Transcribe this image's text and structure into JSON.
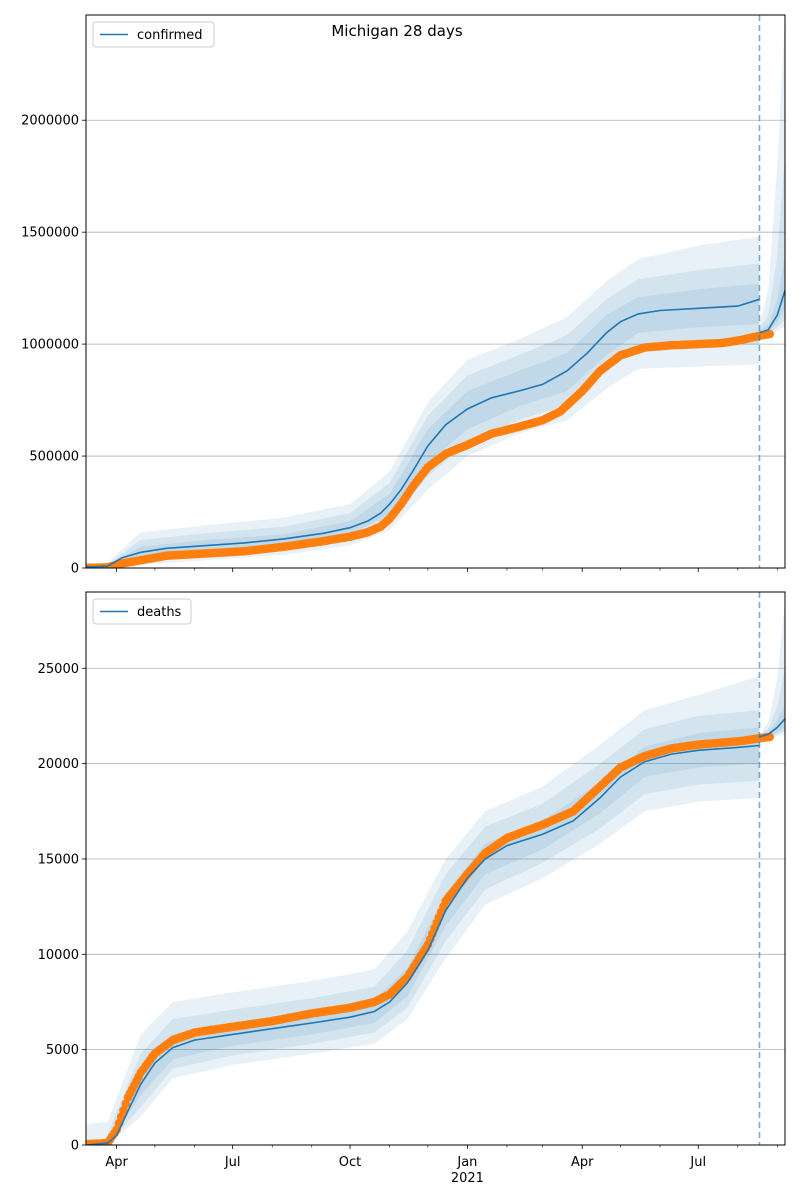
{
  "figure": {
    "title": "Michigan 28 days"
  },
  "chart_data": [
    {
      "type": "line",
      "name": "confirmed",
      "legend": {
        "label": "confirmed",
        "placement": "upper-left"
      },
      "grid": true,
      "ylim": [
        0,
        2470000
      ],
      "yticks": [
        0,
        500000,
        1000000,
        1500000,
        2000000
      ],
      "ytick_labels": [
        "0",
        "500000",
        "1000000",
        "1500000",
        "2000000"
      ],
      "xlim": [
        "2020-03-08",
        "2021-09-07"
      ],
      "forecast_start": "2021-08-18",
      "model_median": {
        "x": [
          "2020-03-08",
          "2020-03-25",
          "2020-04-05",
          "2020-04-20",
          "2020-05-10",
          "2020-06-10",
          "2020-07-10",
          "2020-08-10",
          "2020-09-10",
          "2020-10-01",
          "2020-10-15",
          "2020-10-25",
          "2020-11-01",
          "2020-11-10",
          "2020-11-20",
          "2020-12-01",
          "2020-12-15",
          "2021-01-01",
          "2021-01-20",
          "2021-02-10",
          "2021-03-01",
          "2021-03-20",
          "2021-04-05",
          "2021-04-20",
          "2021-05-01",
          "2021-05-15",
          "2021-06-01",
          "2021-07-01",
          "2021-08-01",
          "2021-08-18"
        ],
        "y": [
          5000,
          8000,
          45000,
          70000,
          88000,
          100000,
          112000,
          130000,
          155000,
          180000,
          210000,
          245000,
          285000,
          350000,
          440000,
          545000,
          640000,
          710000,
          760000,
          790000,
          820000,
          880000,
          960000,
          1050000,
          1100000,
          1135000,
          1150000,
          1160000,
          1170000,
          1200000
        ]
      },
      "model_ci_50": {
        "x": [
          "2020-03-25",
          "2020-04-20",
          "2020-06-10",
          "2020-08-10",
          "2020-10-01",
          "2020-11-01",
          "2020-12-01",
          "2021-01-01",
          "2021-02-10",
          "2021-03-20",
          "2021-04-20",
          "2021-05-15",
          "2021-07-01",
          "2021-08-18"
        ],
        "low": [
          5000,
          45000,
          75000,
          105000,
          150000,
          240000,
          470000,
          620000,
          720000,
          790000,
          950000,
          1050000,
          1075000,
          1090000
        ],
        "high": [
          12000,
          95000,
          125000,
          150000,
          210000,
          330000,
          620000,
          790000,
          880000,
          960000,
          1130000,
          1210000,
          1245000,
          1270000
        ]
      },
      "model_ci_80": {
        "x": [
          "2020-03-25",
          "2020-04-20",
          "2020-06-10",
          "2020-08-10",
          "2020-10-01",
          "2020-11-01",
          "2020-12-01",
          "2021-01-01",
          "2021-02-10",
          "2021-03-20",
          "2021-04-20",
          "2021-05-15",
          "2021-07-01",
          "2021-08-18"
        ],
        "low": [
          3000,
          30000,
          55000,
          85000,
          125000,
          205000,
          410000,
          560000,
          660000,
          730000,
          880000,
          975000,
          990000,
          1000000
        ],
        "high": [
          18000,
          125000,
          155000,
          185000,
          245000,
          380000,
          680000,
          860000,
          950000,
          1040000,
          1200000,
          1290000,
          1330000,
          1360000
        ]
      },
      "model_ci_95": {
        "x": [
          "2020-03-25",
          "2020-04-20",
          "2020-06-10",
          "2020-08-10",
          "2020-10-01",
          "2020-11-01",
          "2020-12-01",
          "2021-01-01",
          "2021-02-10",
          "2021-03-20",
          "2021-04-20",
          "2021-05-15",
          "2021-07-01",
          "2021-08-18"
        ],
        "low": [
          0,
          15000,
          35000,
          60000,
          100000,
          170000,
          350000,
          500000,
          600000,
          660000,
          800000,
          890000,
          900000,
          910000
        ],
        "high": [
          25000,
          160000,
          190000,
          225000,
          285000,
          430000,
          740000,
          930000,
          1020000,
          1120000,
          1280000,
          1380000,
          1440000,
          1480000
        ]
      },
      "observed": {
        "x": [
          "2020-03-08",
          "2020-03-25",
          "2020-04-05",
          "2020-04-20",
          "2020-05-10",
          "2020-06-10",
          "2020-07-10",
          "2020-08-10",
          "2020-09-10",
          "2020-10-01",
          "2020-10-15",
          "2020-10-25",
          "2020-11-01",
          "2020-11-10",
          "2020-11-20",
          "2020-12-01",
          "2020-12-15",
          "2021-01-01",
          "2021-01-20",
          "2021-02-10",
          "2021-03-01",
          "2021-03-15",
          "2021-04-01",
          "2021-04-15",
          "2021-05-01",
          "2021-05-20",
          "2021-06-10",
          "2021-07-01",
          "2021-07-20",
          "2021-08-05",
          "2021-08-20",
          "2021-08-26"
        ],
        "y": [
          500,
          3000,
          20000,
          35000,
          55000,
          65000,
          75000,
          95000,
          120000,
          140000,
          160000,
          185000,
          220000,
          285000,
          370000,
          450000,
          510000,
          550000,
          600000,
          630000,
          660000,
          700000,
          790000,
          880000,
          950000,
          985000,
          995000,
          1000000,
          1005000,
          1020000,
          1040000,
          1045000
        ]
      },
      "forecast_median": {
        "x": [
          "2021-08-18",
          "2021-08-25",
          "2021-09-01",
          "2021-09-07"
        ],
        "y": [
          1050000,
          1065000,
          1130000,
          1240000
        ]
      },
      "forecast_ci_50": {
        "x": [
          "2021-08-18",
          "2021-08-25",
          "2021-09-01",
          "2021-09-07"
        ],
        "low": [
          1040000,
          1050000,
          1095000,
          1160000
        ],
        "high": [
          1060000,
          1085000,
          1200000,
          1400000
        ]
      },
      "forecast_ci_80": {
        "x": [
          "2021-08-18",
          "2021-08-25",
          "2021-09-01",
          "2021-09-07"
        ],
        "low": [
          1035000,
          1045000,
          1075000,
          1110000
        ],
        "high": [
          1070000,
          1130000,
          1400000,
          1850000
        ]
      },
      "forecast_ci_95": {
        "x": [
          "2021-08-18",
          "2021-08-25",
          "2021-09-01",
          "2021-09-07"
        ],
        "low": [
          1030000,
          1040000,
          1060000,
          1080000
        ],
        "high": [
          1080000,
          1250000,
          1800000,
          2470000
        ]
      }
    },
    {
      "type": "line",
      "name": "deaths",
      "legend": {
        "label": "deaths",
        "placement": "upper-left"
      },
      "grid": true,
      "ylim": [
        0,
        29000
      ],
      "yticks": [
        0,
        5000,
        10000,
        15000,
        20000,
        25000
      ],
      "ytick_labels": [
        "0",
        "5000",
        "10000",
        "15000",
        "20000",
        "25000"
      ],
      "xlim": [
        "2020-03-08",
        "2021-09-07"
      ],
      "xticks": [
        "2020-04-01",
        "2020-07-01",
        "2020-10-01",
        "2021-01-01",
        "2021-04-01",
        "2021-07-01"
      ],
      "xtick_labels": [
        "Apr",
        "Jul",
        "Oct",
        "Jan",
        "Apr",
        "Jul"
      ],
      "xtick_sublabel": {
        "at": "2021-01-01",
        "text": "2021"
      },
      "xminor_ticks": [
        "2020-05-01",
        "2020-06-01",
        "2020-08-01",
        "2020-09-01",
        "2020-11-01",
        "2020-12-01",
        "2021-02-01",
        "2021-03-01",
        "2021-05-01",
        "2021-06-01",
        "2021-08-01",
        "2021-09-01"
      ],
      "forecast_start": "2021-08-18",
      "model_median": {
        "x": [
          "2020-03-08",
          "2020-03-25",
          "2020-04-01",
          "2020-04-10",
          "2020-04-20",
          "2020-05-01",
          "2020-05-15",
          "2020-06-01",
          "2020-07-01",
          "2020-08-01",
          "2020-09-01",
          "2020-10-01",
          "2020-10-20",
          "2020-11-01",
          "2020-11-15",
          "2020-12-01",
          "2020-12-15",
          "2021-01-01",
          "2021-01-15",
          "2021-02-01",
          "2021-03-01",
          "2021-03-25",
          "2021-04-15",
          "2021-05-01",
          "2021-05-20",
          "2021-06-10",
          "2021-07-01",
          "2021-08-01",
          "2021-08-18"
        ],
        "y": [
          0,
          100,
          500,
          1800,
          3200,
          4300,
          5100,
          5500,
          5800,
          6100,
          6400,
          6700,
          7000,
          7500,
          8500,
          10200,
          12300,
          14000,
          15000,
          15700,
          16300,
          17000,
          18200,
          19300,
          20100,
          20500,
          20700,
          20850,
          20950
        ]
      },
      "model_ci_50": {
        "x": [
          "2020-03-25",
          "2020-04-20",
          "2020-05-15",
          "2020-07-01",
          "2020-09-01",
          "2020-10-20",
          "2020-11-15",
          "2020-12-15",
          "2021-01-15",
          "2021-03-01",
          "2021-04-15",
          "2021-05-20",
          "2021-07-01",
          "2021-08-18"
        ],
        "low": [
          50,
          2600,
          4500,
          5200,
          5800,
          6400,
          7800,
          11500,
          14200,
          15500,
          17400,
          19300,
          19800,
          20000
        ],
        "high": [
          300,
          3900,
          5800,
          6400,
          7000,
          7600,
          9300,
          13200,
          15800,
          17000,
          19000,
          20900,
          21600,
          21900
        ]
      },
      "model_ci_80": {
        "x": [
          "2020-03-25",
          "2020-04-20",
          "2020-05-15",
          "2020-07-01",
          "2020-09-01",
          "2020-10-20",
          "2020-11-15",
          "2020-12-15",
          "2021-01-15",
          "2021-03-01",
          "2021-04-15",
          "2021-05-20",
          "2021-07-01",
          "2021-08-18"
        ],
        "low": [
          0,
          2000,
          4000,
          4700,
          5300,
          5900,
          7200,
          10700,
          13400,
          14800,
          16600,
          18400,
          18900,
          19100
        ],
        "high": [
          600,
          4800,
          6600,
          7100,
          7700,
          8300,
          10200,
          14200,
          16700,
          17900,
          20000,
          21800,
          22500,
          22800
        ]
      },
      "model_ci_95": {
        "x": [
          "2020-03-08",
          "2020-03-25",
          "2020-04-20",
          "2020-05-15",
          "2020-07-01",
          "2020-09-01",
          "2020-10-20",
          "2020-11-15",
          "2020-12-15",
          "2021-01-15",
          "2021-03-01",
          "2021-04-15",
          "2021-05-20",
          "2021-07-01",
          "2021-08-18"
        ],
        "low": [
          0,
          0,
          1500,
          3500,
          4200,
          4800,
          5300,
          6600,
          9800,
          12600,
          14000,
          15800,
          17500,
          18000,
          18200
        ],
        "high": [
          1100,
          1200,
          5800,
          7500,
          8000,
          8600,
          9200,
          11200,
          15000,
          17500,
          18800,
          21000,
          22800,
          23600,
          24600
        ]
      },
      "observed": {
        "x": [
          "2020-03-08",
          "2020-03-25",
          "2020-04-01",
          "2020-04-10",
          "2020-04-20",
          "2020-05-01",
          "2020-05-15",
          "2020-06-01",
          "2020-07-01",
          "2020-08-01",
          "2020-09-01",
          "2020-10-01",
          "2020-10-20",
          "2020-11-01",
          "2020-11-15",
          "2020-12-01",
          "2020-12-15",
          "2021-01-01",
          "2021-01-15",
          "2021-02-01",
          "2021-03-01",
          "2021-03-25",
          "2021-04-15",
          "2021-05-01",
          "2021-05-20",
          "2021-06-10",
          "2021-07-01",
          "2021-07-20",
          "2021-08-05",
          "2021-08-20",
          "2021-08-26"
        ],
        "y": [
          50,
          100,
          800,
          2500,
          3800,
          4800,
          5500,
          5900,
          6200,
          6500,
          6900,
          7200,
          7500,
          7900,
          8800,
          10500,
          12800,
          14200,
          15300,
          16100,
          16800,
          17500,
          18800,
          19800,
          20400,
          20800,
          21000,
          21100,
          21200,
          21350,
          21400
        ]
      },
      "forecast_median": {
        "x": [
          "2021-08-18",
          "2021-08-25",
          "2021-09-01",
          "2021-09-07"
        ],
        "y": [
          21400,
          21550,
          21900,
          22350
        ]
      },
      "forecast_ci_50": {
        "x": [
          "2021-08-18",
          "2021-08-25",
          "2021-09-01",
          "2021-09-07"
        ],
        "low": [
          21380,
          21450,
          21650,
          21900
        ],
        "high": [
          21430,
          21650,
          22300,
          23100
        ]
      },
      "forecast_ci_80": {
        "x": [
          "2021-08-18",
          "2021-08-25",
          "2021-09-01",
          "2021-09-07"
        ],
        "low": [
          21360,
          21400,
          21550,
          21700
        ],
        "high": [
          21450,
          21850,
          23000,
          25000
        ]
      },
      "forecast_ci_95": {
        "x": [
          "2021-08-18",
          "2021-08-25",
          "2021-09-01",
          "2021-09-07"
        ],
        "low": [
          21340,
          21380,
          21450,
          21550
        ],
        "high": [
          21480,
          22200,
          24500,
          28500
        ]
      }
    }
  ],
  "colors": {
    "line": "#1f77b4",
    "band": "#1f77b4",
    "observed": "#ff7f0e",
    "grid": "#b0b0b0",
    "axis": "#000000",
    "text": "#000000",
    "legend_border": "#cccccc"
  }
}
